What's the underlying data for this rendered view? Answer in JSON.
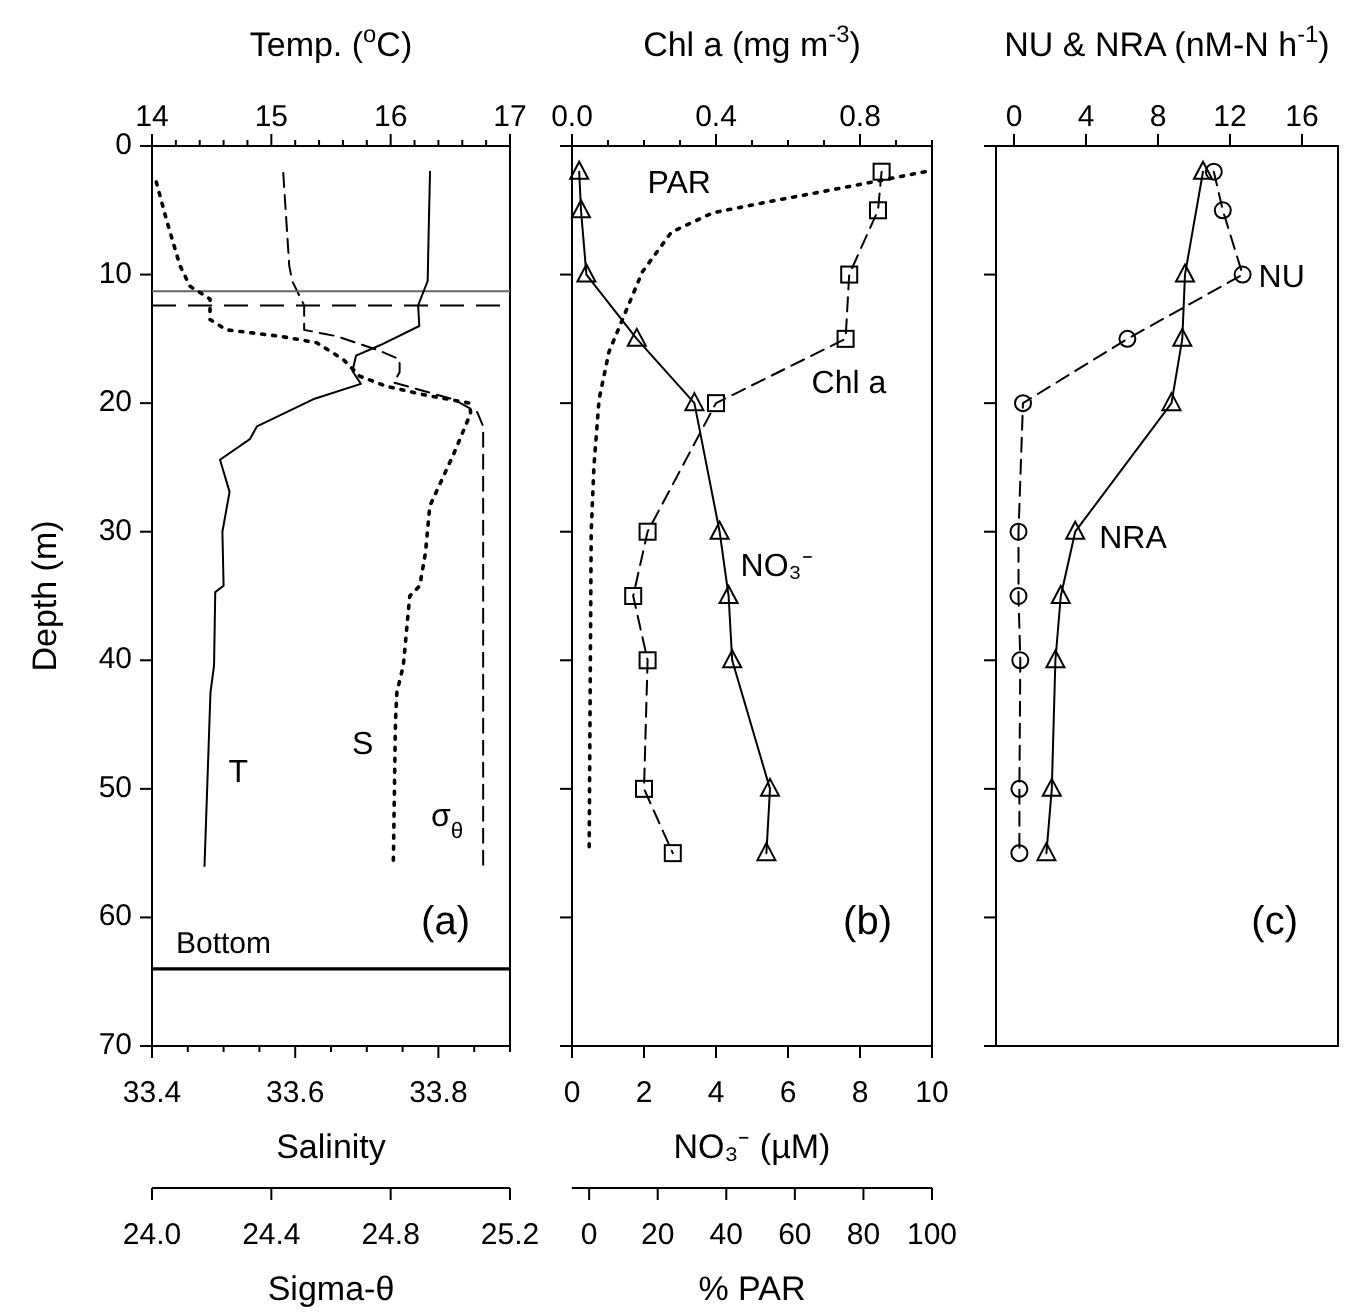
{
  "chart_data": [
    {
      "type": "line",
      "ylabel": "Depth (m)",
      "x2label": "Temp. ($^{o}$C)",
      "xlabel": "Salinity",
      "ylim": [
        70,
        0
      ],
      "yticks": [
        0,
        10,
        20,
        30,
        40,
        50,
        60,
        70
      ],
      "x2lim": [
        14,
        17
      ],
      "x2ticks": [
        14,
        {
          "value": 14.2,
          "label": null
        },
        {
          "value": 14.4,
          "label": null
        },
        {
          "value": 14.6,
          "label": null
        },
        {
          "value": 14.8,
          "label": null
        },
        15,
        {
          "value": 15.2,
          "label": null
        },
        {
          "value": 15.4,
          "label": null
        },
        {
          "value": 15.6,
          "label": null
        },
        {
          "value": 15.8,
          "label": null
        },
        16,
        {
          "value": 16.2,
          "label": null
        },
        {
          "value": 16.4,
          "label": null
        },
        {
          "value": 16.6,
          "label": null
        },
        {
          "value": 16.8,
          "label": null
        },
        17
      ],
      "xlim": [
        33.4,
        33.9
      ],
      "xticks": [
        33.4,
        {
          "value": 33.45,
          "label": null
        },
        {
          "value": 33.5,
          "label": null
        },
        {
          "value": 33.55,
          "label": null
        },
        33.6,
        {
          "value": 33.65,
          "label": null
        },
        {
          "value": 33.7,
          "label": null
        },
        {
          "value": 33.75,
          "label": null
        },
        33.8,
        {
          "value": 33.85,
          "label": null
        },
        {
          "value": 33.9,
          "label": null
        }
      ],
      "series": [
        {
          "name": "T",
          "color": "#000000",
          "axis": "x2",
          "line_style": "solid",
          "marker": "none",
          "x": [
            16.33,
            16.32,
            16.31,
            16.23,
            16.24,
            15.91,
            15.71,
            15.68,
            15.75,
            15.35,
            14.88,
            14.82,
            14.57,
            14.65,
            14.59,
            14.6,
            14.53,
            14.52,
            14.49,
            14.44
          ],
          "values": [
            2,
            6,
            10.5,
            12.4,
            14,
            15.5,
            16.3,
            17.5,
            18.5,
            19.7,
            21.8,
            22.8,
            24.4,
            26.9,
            30,
            34.2,
            34.7,
            40.4,
            42.5,
            56
          ]
        },
        {
          "name": "S",
          "color": "#000000",
          "line_style": "dotted",
          "marker": "none",
          "x": [
            33.406,
            33.42,
            33.439,
            33.453,
            33.481,
            33.481,
            33.504,
            33.579,
            33.63,
            33.667,
            33.69,
            33.728,
            33.784,
            33.844,
            33.845,
            33.821,
            33.788,
            33.782,
            33.774,
            33.76,
            33.751,
            33.742,
            33.74,
            33.737
          ],
          "values": [
            2.8,
            5.7,
            9.3,
            10.9,
            11.9,
            13.5,
            14.3,
            14.8,
            15.3,
            16.6,
            17.9,
            18.7,
            19.4,
            20,
            20.8,
            24,
            28,
            31.6,
            34.2,
            35,
            40.4,
            42.5,
            44.8,
            56
          ]
        }
      ],
      "ref_lines": [
        {
          "axis": "y",
          "value": 11.3,
          "line_style": "solid",
          "color": "#666666"
        },
        {
          "axis": "y",
          "value": 12.4,
          "line_style": "dashed",
          "color": "#000000"
        },
        {
          "axis": "y",
          "value": 64,
          "label": "Bottom",
          "line_style": "solid",
          "color": "#000000"
        }
      ],
      "annotations": [
        "(a)"
      ]
    },
    {
      "type": "line",
      "xlabel": "Sigma-θ",
      "tick_labels": "x",
      "ylim": [
        70,
        0
      ],
      "xlim": [
        24.0,
        25.2
      ],
      "xticks": [
        {
          "value": 24.0,
          "label": "24.0"
        },
        24.4,
        24.8,
        25.2
      ],
      "series": [
        {
          "name": "σ$_{θ}$",
          "color": "#000000",
          "line_style": "dashed",
          "marker": "none",
          "x": [
            24.44,
            24.46,
            24.47,
            24.51,
            24.51,
            24.62,
            24.76,
            24.83,
            24.83,
            24.81,
            25.01,
            25.09,
            25.11,
            25.11,
            25.11
          ],
          "values": [
            2.1,
            9.3,
            10.5,
            12.4,
            14.3,
            14.8,
            15.9,
            16.6,
            17.6,
            18.4,
            19.7,
            20.7,
            21.8,
            40,
            56
          ]
        }
      ]
    },
    {
      "type": "line",
      "x2label": "Chl a (mg m$^{-3}$)",
      "xlabel": "NO₃⁻ (µM)",
      "tick_labels": "x",
      "ylim": [
        70,
        0
      ],
      "yticks": [
        0,
        10,
        20,
        30,
        40,
        50,
        60,
        70
      ],
      "x2lim": [
        0,
        1.0
      ],
      "x2ticks": [
        {
          "value": 0,
          "label": "0.0"
        },
        {
          "value": 0.1,
          "label": null
        },
        {
          "value": 0.2,
          "label": null
        },
        {
          "value": 0.3,
          "label": null
        },
        0.4,
        {
          "value": 0.5,
          "label": null
        },
        {
          "value": 0.6,
          "label": null
        },
        {
          "value": 0.7,
          "label": null
        },
        0.8,
        {
          "value": 0.9,
          "label": null
        },
        {
          "value": 1.0,
          "label": null
        }
      ],
      "xlim": [
        0,
        10
      ],
      "xticks": [
        0,
        2,
        4,
        6,
        8,
        10
      ],
      "series": [
        {
          "name": "Chl a",
          "color": "#000000",
          "axis": "x2",
          "line_style": "dashed",
          "marker": "square",
          "x": [
            0.86,
            0.85,
            0.77,
            0.76,
            0.4,
            0.21,
            0.17,
            0.21,
            0.2,
            0.28
          ],
          "values": [
            2,
            5,
            10,
            15,
            20,
            30,
            35,
            40,
            50,
            55
          ]
        },
        {
          "name": "NO₃⁻",
          "color": "#000000",
          "line_style": "solid",
          "marker": "triangle",
          "x": [
            0.2,
            0.25,
            0.4,
            1.8,
            3.4,
            4.1,
            4.35,
            4.45,
            5.5,
            5.4
          ],
          "values": [
            2,
            5,
            10,
            15,
            20,
            30,
            35,
            40,
            50,
            55
          ]
        }
      ],
      "annotations": [
        "(b)"
      ]
    },
    {
      "type": "line",
      "xlabel": "% PAR",
      "tick_labels": "x",
      "ylim": [
        70,
        0
      ],
      "xlim": [
        -5,
        100
      ],
      "xticks": [
        0,
        20,
        40,
        60,
        80,
        100
      ],
      "series": [
        {
          "name": "PAR",
          "color": "#000000",
          "line_style": "dotted",
          "marker": "none",
          "x": [
            98,
            73,
            53,
            36,
            24,
            15.5,
            9.7,
            5.8,
            2.9,
            1.4,
            0.6,
            0
          ],
          "values": [
            2,
            3.3,
            4.3,
            5.2,
            6.7,
            9.8,
            13.5,
            16,
            19.7,
            24.9,
            30,
            55
          ]
        }
      ]
    },
    {
      "type": "line",
      "xlabel": "NU & NRA (nM-N h$^{-1}$)",
      "tick_labels": "x",
      "ylim": [
        70,
        0
      ],
      "yticks": [
        0,
        10,
        20,
        30,
        40,
        50,
        60,
        70
      ],
      "xlim": [
        -1,
        18
      ],
      "xticks": [
        0,
        4,
        8,
        12,
        16
      ],
      "series": [
        {
          "name": "NU",
          "color": "#000000",
          "line_style": "dashed",
          "marker": "circle",
          "x": [
            11.1,
            11.6,
            12.7,
            6.3,
            0.5,
            0.25,
            0.25,
            0.35,
            0.3,
            0.3
          ],
          "values": [
            2,
            5,
            10,
            15,
            20,
            30,
            35,
            40,
            50,
            55
          ]
        },
        {
          "name": "NRA",
          "color": "#000000",
          "line_style": "solid",
          "marker": "triangle",
          "x": [
            10.5,
            9.5,
            9.35,
            8.75,
            3.4,
            2.6,
            2.3,
            2.1,
            1.8
          ],
          "values": [
            2,
            10,
            15,
            20,
            30,
            35,
            40,
            50,
            55
          ]
        }
      ],
      "annotations": [
        "(c)"
      ]
    }
  ]
}
